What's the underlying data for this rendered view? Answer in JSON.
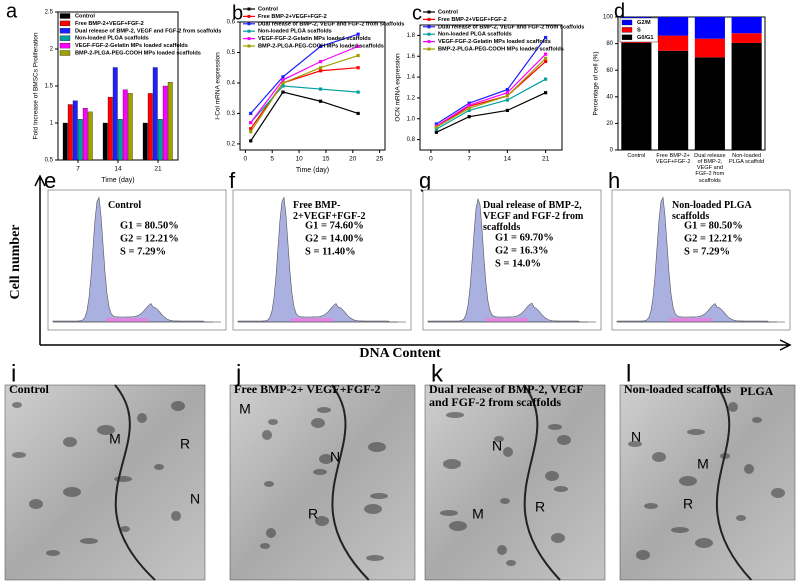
{
  "chart_data": [
    {
      "type": "bar",
      "panel": "a",
      "ylabel": "Fold Increase of BMSCs Proliferation",
      "xlabel": "Time (day)",
      "categories": [
        "7",
        "14",
        "21"
      ],
      "ylim": [
        0.5,
        2.5
      ],
      "yticks": [
        0.5,
        1,
        1.5,
        2,
        2.5
      ],
      "series": [
        {
          "name": "Control",
          "color": "#000000",
          "values": [
            1,
            1,
            1
          ]
        },
        {
          "name": "Free BMP-2+VEGF+FGF-2",
          "color": "#ff0000",
          "values": [
            1.25,
            1.35,
            1.4
          ]
        },
        {
          "name": "Dual release of BMP-2, VEGF and FGF-2 from scaffolds",
          "color": "#1f1fff",
          "values": [
            1.3,
            1.75,
            1.75
          ]
        },
        {
          "name": "Non-loaded PLGA scaffolds",
          "color": "#00a0a0",
          "values": [
            1.05,
            1.05,
            1.05
          ]
        },
        {
          "name": "VEGF-FGF-2-Gelatin MPs loaded scaffolds",
          "color": "#ff00ff",
          "values": [
            1.2,
            1.45,
            1.5
          ]
        },
        {
          "name": "BMP-2-PLGA-PEG-COOH MPs loaded scaffolds",
          "color": "#a0a000",
          "values": [
            1.15,
            1.4,
            1.55
          ]
        }
      ]
    },
    {
      "type": "line",
      "panel": "b",
      "ylabel": "I-Col mRNA expression",
      "xlabel": "Time (day)",
      "x": [
        1,
        7,
        14,
        21
      ],
      "xlim": [
        -1,
        26
      ],
      "xticks": [
        0,
        5,
        10,
        15,
        20,
        25
      ],
      "ylim": [
        0.18,
        0.6
      ],
      "yticks": [
        0.2,
        0.3,
        0.4,
        0.5,
        0.6
      ],
      "series": [
        {
          "name": "Control",
          "color": "#000000",
          "values": [
            0.21,
            0.37,
            0.34,
            0.3
          ]
        },
        {
          "name": "Free BMP-2+VEGF+FGF-2",
          "color": "#ff0000",
          "values": [
            0.25,
            0.4,
            0.44,
            0.45
          ]
        },
        {
          "name": "Dual release of BMP-2, VEGF and FGF-2 from scaffolds",
          "color": "#1f1fff",
          "values": [
            0.3,
            0.42,
            0.52,
            0.56
          ]
        },
        {
          "name": "Non-loaded PLGA scaffolds",
          "color": "#00a0a0",
          "values": [
            0.27,
            0.39,
            0.38,
            0.37
          ]
        },
        {
          "name": "VEGF-FGF-2-Gelatin MPs loaded scaffolds",
          "color": "#ff00ff",
          "values": [
            0.27,
            0.41,
            0.47,
            0.52
          ]
        },
        {
          "name": "BMP-2-PLGA-PEG-COOH MPs loaded scaffolds",
          "color": "#a0a000",
          "values": [
            0.24,
            0.4,
            0.45,
            0.49
          ]
        }
      ]
    },
    {
      "type": "line",
      "panel": "c",
      "ylabel": "OCN mRNA expression",
      "x": [
        1,
        7,
        14,
        21
      ],
      "xlim": [
        -2,
        24
      ],
      "xticks": [
        0,
        7,
        14,
        21
      ],
      "ylim": [
        0.7,
        1.9
      ],
      "yticks": [
        0.8,
        {
          "value": 1,
          "label": "1.0"
        },
        1.2,
        1.4,
        1.6,
        1.8
      ],
      "series": [
        {
          "name": "Control",
          "color": "#000000",
          "values": [
            0.87,
            1.02,
            1.08,
            1.25
          ]
        },
        {
          "name": "Free BMP-2+VEGF+FGF-2",
          "color": "#ff0000",
          "values": [
            0.92,
            1.12,
            1.22,
            1.55
          ]
        },
        {
          "name": "Dual release of BMP-2, VEGF and FGF-2 from scaffolds",
          "color": "#1f1fff",
          "values": [
            0.95,
            1.15,
            1.28,
            1.78
          ]
        },
        {
          "name": "Non-loaded PLGA scaffolds",
          "color": "#00a0a0",
          "values": [
            0.9,
            1.08,
            1.18,
            1.38
          ]
        },
        {
          "name": "VEGF-FGF-2-Gelatin MPs loaded scaffolds",
          "color": "#ff00ff",
          "values": [
            0.93,
            1.13,
            1.25,
            1.62
          ]
        },
        {
          "name": "BMP-2-PLGA-PEG-COOH MPs loaded scaffolds",
          "color": "#a0a000",
          "values": [
            0.92,
            1.1,
            1.22,
            1.58
          ]
        }
      ]
    },
    {
      "type": "stacked_bar",
      "panel": "d",
      "ylabel": "Percentage of cell (%)",
      "categories": [
        "Control",
        "Free BMP-2+ VEGF+FGF-2",
        "Dual release of BMP-2, VEGF and FGF-2 from scaffolds",
        "Non-loaded PLGA scaffold"
      ],
      "ylim": [
        0,
        100
      ],
      "yticks": [
        0,
        20,
        40,
        60,
        80,
        100
      ],
      "series": [
        {
          "name": "G0/G1",
          "color": "#000000",
          "values": [
            80.5,
            74.6,
            69.7,
            80.5
          ]
        },
        {
          "name": "S",
          "color": "#ff0000",
          "values": [
            7.29,
            11.4,
            14.0,
            7.29
          ]
        },
        {
          "name": "G2/M",
          "color": "#0000ff",
          "values": [
            12.21,
            14.0,
            16.3,
            12.21
          ]
        }
      ]
    }
  ],
  "flow_axis": {
    "ylabel": "Cell number",
    "xlabel": "DNA Content"
  },
  "flow_panels": [
    {
      "panel": "e",
      "title": "Control",
      "lines": [
        "G1 = 80.50%",
        "G2 = 12.21%",
        "S = 7.29%"
      ]
    },
    {
      "panel": "f",
      "title": "Free BMP-2+VEGF+FGF-2",
      "lines": [
        "G1 = 74.60%",
        "G2 = 14.00%",
        "S = 11.40%"
      ]
    },
    {
      "panel": "g",
      "title": "Dual release of BMP-2, VEGF and FGF-2 from scaffolds",
      "lines": [
        "G1 = 69.70%",
        "G2 = 16.3%",
        "S = 14.0%"
      ]
    },
    {
      "panel": "h",
      "title": "Non-loaded PLGA scaffolds",
      "lines": [
        "G1 = 80.50%",
        "G2 = 12.21%",
        "S = 7.29%"
      ]
    }
  ],
  "micrographs": [
    {
      "panel": "i",
      "title": "Control",
      "labels": [
        "M",
        "R",
        "N"
      ]
    },
    {
      "panel": "j",
      "title": "Free BMP-2+ VEGF+FGF-2",
      "labels": [
        "M",
        "N",
        "R"
      ]
    },
    {
      "panel": "k",
      "title": "Dual release of BMP-2, VEGF and FGF-2 from scaffolds",
      "labels": [
        "N",
        "M",
        "R"
      ]
    },
    {
      "panel": "l",
      "title": "Non-loaded scaffolds",
      "title2": "PLGA",
      "labels": [
        "N",
        "M",
        "R"
      ]
    }
  ]
}
